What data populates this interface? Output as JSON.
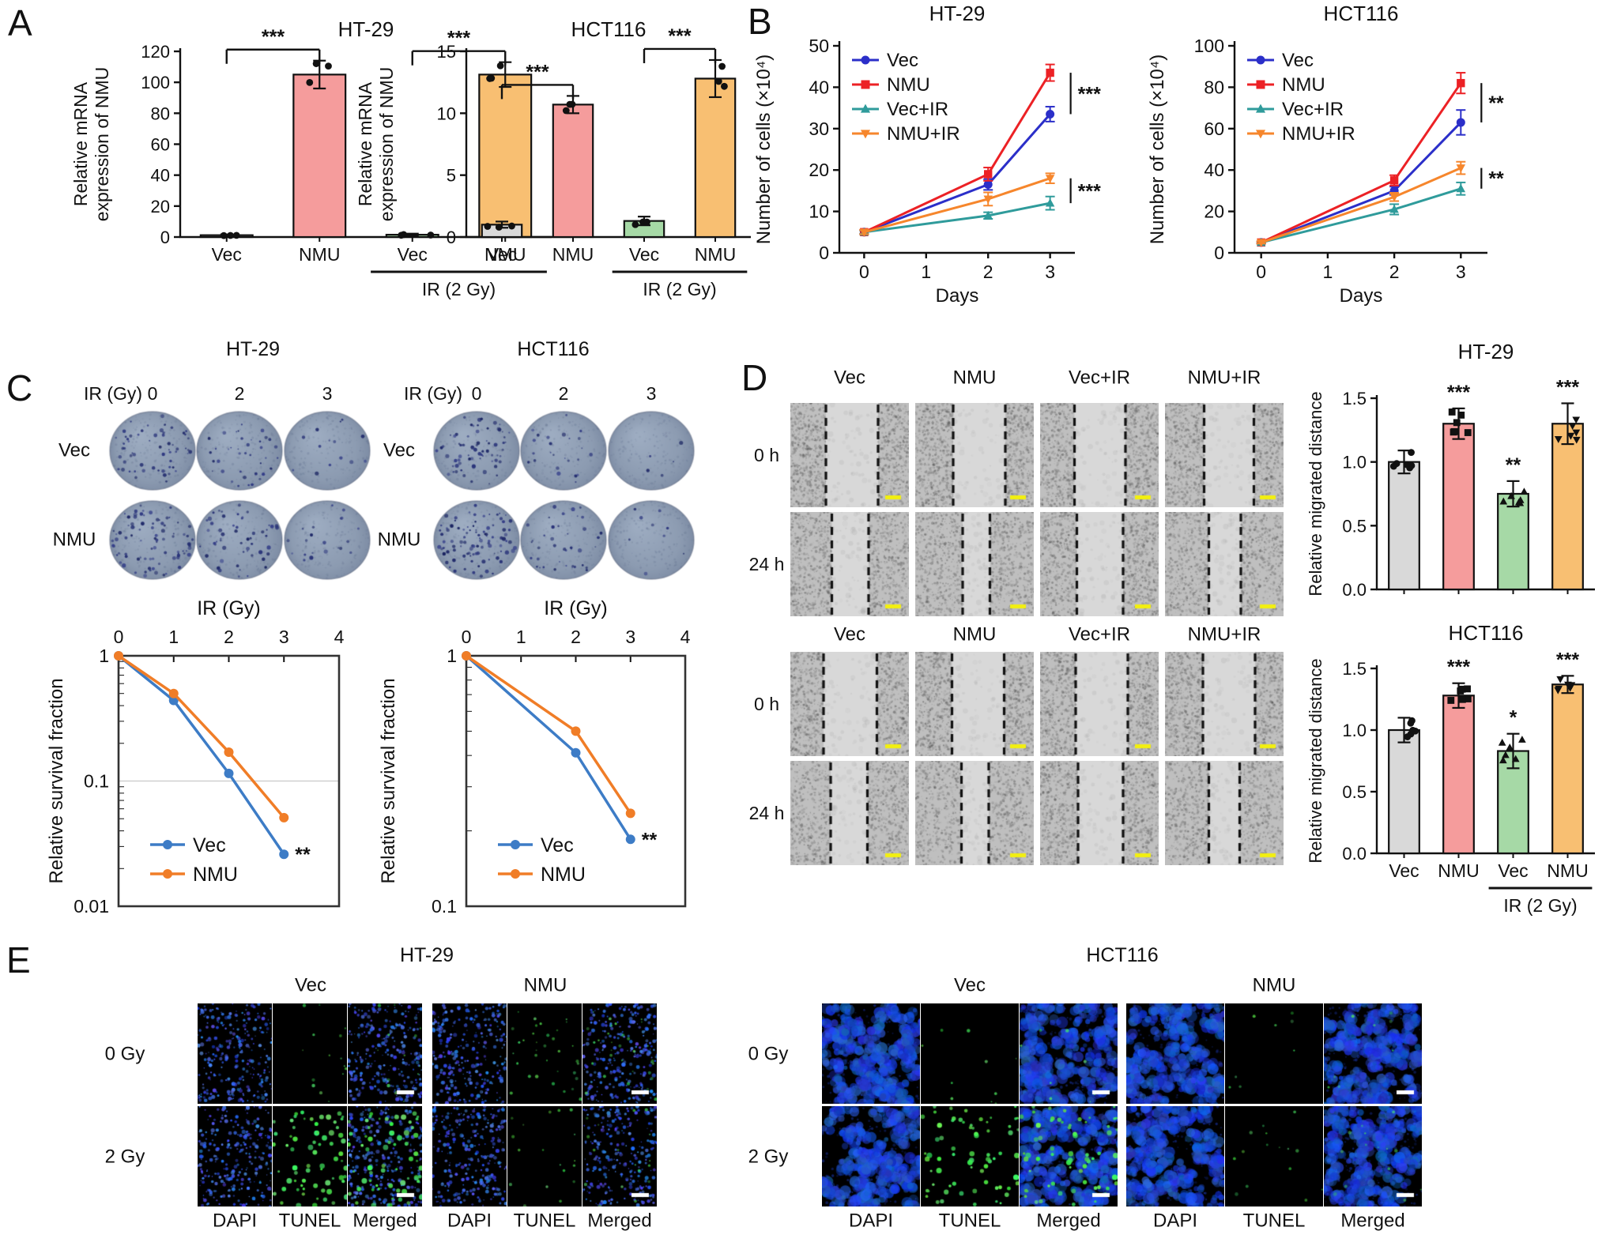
{
  "panel_labels": {
    "a": "A",
    "b": "B",
    "c": "C",
    "d": "D",
    "e": "E"
  },
  "colors": {
    "bar": {
      "gray": "#d9d9d9",
      "pink": "#f59c9c",
      "green": "#a6d9a6",
      "orange": "#f8bf72"
    },
    "vec_blue": "#2b2fc9",
    "nmu_red": "#ec2125",
    "vecir_teal": "#2f9b9b",
    "nmuir_orange": "#f6862c",
    "surv_blue": "#3d7cc6",
    "surv_orange": "#f07d27",
    "scalebar_yellow": "#f2ef10",
    "scalebar_white": "#ffffff",
    "dapi_blue": "#2440e0",
    "tunel_green": "#3cdc50"
  },
  "chart_data": [
    {
      "type": "bar",
      "title": "HT-29",
      "ylabel": "Relative mRNA|expression of NMU",
      "ylim": [
        0,
        120
      ],
      "yticks": [
        0,
        20,
        40,
        60,
        80,
        100,
        120
      ],
      "categories": [
        "Vec",
        "NMU",
        "Vec",
        "NMU"
      ],
      "values": [
        1.2,
        105,
        1.5,
        105
      ],
      "errors": [
        0.5,
        9,
        0.7,
        8
      ],
      "bar_colors": [
        "gray",
        "pink",
        "green",
        "orange"
      ],
      "points_per_bar": 3,
      "sig_brackets": [
        {
          "a": 0,
          "b": 1,
          "label": "***"
        },
        {
          "a": 2,
          "b": 3,
          "label": "***"
        }
      ],
      "group_label": "IR (2 Gy)",
      "group_span": [
        2,
        3
      ]
    },
    {
      "type": "bar",
      "title": "HCT116",
      "ylabel": "Relative mRNA|expression of NMU",
      "ylim": [
        0,
        15
      ],
      "yticks": [
        0,
        5,
        10,
        15
      ],
      "categories": [
        "Vec",
        "NMU",
        "Vec",
        "NMU"
      ],
      "values": [
        1.0,
        10.7,
        1.3,
        12.8
      ],
      "errors": [
        0.25,
        0.7,
        0.35,
        1.5
      ],
      "bar_colors": [
        "gray",
        "pink",
        "green",
        "orange"
      ],
      "points_per_bar": 3,
      "sig_brackets": [
        {
          "a": 0,
          "b": 1,
          "label": "***"
        },
        {
          "a": 2,
          "b": 3,
          "label": "***"
        }
      ],
      "group_label": "IR (2 Gy)",
      "group_span": [
        2,
        3
      ]
    },
    {
      "type": "line",
      "title": "HT-29",
      "ylabel": "Number of cells (×10⁴)",
      "xlabel": "Days",
      "xticks": [
        0,
        1,
        2,
        3
      ],
      "ylim": [
        0,
        50
      ],
      "yticks": [
        0,
        10,
        20,
        30,
        40,
        50
      ],
      "x": [
        0,
        2,
        3
      ],
      "series": [
        {
          "name": "Vec",
          "color_key": "vec_blue",
          "marker": "circle",
          "y": [
            5,
            16.5,
            33.5
          ],
          "err": [
            0.5,
            1.3,
            1.8
          ]
        },
        {
          "name": "NMU",
          "color_key": "nmu_red",
          "marker": "square",
          "y": [
            5,
            19,
            43.5
          ],
          "err": [
            0.5,
            1.6,
            2.0
          ]
        },
        {
          "name": "Vec+IR",
          "color_key": "vecir_teal",
          "marker": "triangle",
          "y": [
            5,
            9,
            12
          ],
          "err": [
            0.4,
            0.8,
            1.6
          ]
        },
        {
          "name": "NMU+IR",
          "color_key": "nmuir_orange",
          "marker": "triangle_down",
          "y": [
            5,
            13,
            18
          ],
          "err": [
            0.5,
            1.6,
            1.2
          ]
        }
      ],
      "sig": [
        {
          "hi": "NMU",
          "lo": "Vec",
          "label": "***"
        },
        {
          "hi": "NMU+IR",
          "lo": "Vec+IR",
          "label": "***"
        }
      ]
    },
    {
      "type": "line",
      "title": "HCT116",
      "ylabel": "Number of cells (×10⁴)",
      "xlabel": "Days",
      "xticks": [
        0,
        1,
        2,
        3
      ],
      "ylim": [
        0,
        100
      ],
      "yticks": [
        0,
        20,
        40,
        60,
        80,
        100
      ],
      "x": [
        0,
        2,
        3
      ],
      "series": [
        {
          "name": "Vec",
          "color_key": "vec_blue",
          "marker": "circle",
          "y": [
            5,
            30,
            63
          ],
          "err": [
            0.5,
            2,
            6
          ]
        },
        {
          "name": "NMU",
          "color_key": "nmu_red",
          "marker": "square",
          "y": [
            5,
            35,
            82
          ],
          "err": [
            0.5,
            2.5,
            5
          ]
        },
        {
          "name": "Vec+IR",
          "color_key": "vecir_teal",
          "marker": "triangle",
          "y": [
            5,
            21,
            31
          ],
          "err": [
            0.5,
            2.5,
            3
          ]
        },
        {
          "name": "NMU+IR",
          "color_key": "nmuir_orange",
          "marker": "triangle_down",
          "y": [
            5,
            27,
            41
          ],
          "err": [
            0.5,
            2,
            3
          ]
        }
      ],
      "sig": [
        {
          "hi": "NMU",
          "lo": "Vec",
          "label": "**"
        },
        {
          "hi": "NMU+IR",
          "lo": "Vec+IR",
          "label": "**"
        }
      ]
    },
    {
      "type": "survival",
      "top_label": "IR (Gy)",
      "xticks": [
        0,
        1,
        2,
        3,
        4
      ],
      "ylabel": "Relative survival fraction",
      "ylim": [
        0.01,
        1
      ],
      "yticks": [
        "1",
        "0.1",
        "0.01"
      ],
      "grid_at": 0.1,
      "series": [
        {
          "name": "Vec",
          "color_key": "surv_blue",
          "x": [
            0,
            1,
            2,
            3
          ],
          "y": [
            1,
            0.44,
            0.115,
            0.026
          ]
        },
        {
          "name": "NMU",
          "color_key": "surv_orange",
          "x": [
            0,
            1,
            2,
            3
          ],
          "y": [
            1,
            0.5,
            0.17,
            0.051
          ]
        }
      ],
      "sig": "**"
    },
    {
      "type": "survival",
      "top_label": "IR (Gy)",
      "xticks": [
        0,
        1,
        2,
        3,
        4
      ],
      "ylabel": "Relative survival fraction",
      "ylim": [
        0.1,
        1
      ],
      "yticks": [
        "1",
        "0.1"
      ],
      "grid_at": null,
      "series": [
        {
          "name": "Vec",
          "color_key": "surv_blue",
          "x": [
            0,
            2,
            3
          ],
          "y": [
            1,
            0.41,
            0.185
          ]
        },
        {
          "name": "NMU",
          "color_key": "surv_orange",
          "x": [
            0,
            2,
            3
          ],
          "y": [
            1,
            0.5,
            0.235
          ]
        }
      ],
      "sig": "**"
    },
    {
      "type": "bar",
      "title": "HT-29",
      "ylabel": "Relative migrated distance",
      "ylim": [
        0,
        1.5
      ],
      "yticks": [
        0,
        0.5,
        1,
        1.5
      ],
      "decimals": 1,
      "categories": [
        "Vec",
        "NMU",
        "Vec",
        "NMU"
      ],
      "show_cats": false,
      "values": [
        1.0,
        1.3,
        0.75,
        1.3
      ],
      "errors": [
        0.09,
        0.12,
        0.1,
        0.16
      ],
      "bar_colors": [
        "gray",
        "pink",
        "green",
        "orange"
      ],
      "points_per_bar": 6,
      "point_markers": [
        "circle",
        "square",
        "triangle",
        "triangle_down"
      ],
      "sig_above": [
        "",
        "***",
        "**",
        "***"
      ]
    },
    {
      "type": "bar",
      "title": "HCT116",
      "ylabel": "Relative migrated distance",
      "ylim": [
        0,
        1.5
      ],
      "yticks": [
        0,
        0.5,
        1,
        1.5
      ],
      "decimals": 1,
      "categories": [
        "Vec",
        "NMU",
        "Vec",
        "NMU"
      ],
      "show_cats": true,
      "values": [
        1.0,
        1.28,
        0.83,
        1.37
      ],
      "errors": [
        0.1,
        0.1,
        0.14,
        0.07
      ],
      "bar_colors": [
        "gray",
        "pink",
        "green",
        "orange"
      ],
      "points_per_bar": 6,
      "point_markers": [
        "circle",
        "square",
        "triangle",
        "triangle_down"
      ],
      "sig_above": [
        "",
        "***",
        "*",
        "***"
      ],
      "group_label": "IR (2 Gy)",
      "group_span": [
        2,
        3
      ]
    }
  ],
  "panel_c": {
    "groups": [
      {
        "title": "HT-29",
        "header": "IR (Gy)",
        "doses": [
          "0",
          "2",
          "3"
        ],
        "rows": [
          {
            "label": "Vec",
            "dots": [
              60,
              40,
              14
            ]
          },
          {
            "label": "NMU",
            "dots": [
              85,
              55,
              22
            ]
          }
        ]
      },
      {
        "title": "HCT116",
        "header": "IR (Gy)",
        "doses": [
          "0",
          "2",
          "3"
        ],
        "rows": [
          {
            "label": "Vec",
            "dots": [
              70,
              26,
              5
            ]
          },
          {
            "label": "NMU",
            "dots": [
              95,
              40,
              9
            ]
          }
        ]
      }
    ]
  },
  "panel_d": {
    "blocks": [
      {
        "cols": [
          "Vec",
          "NMU",
          "Vec+IR",
          "NMU+IR"
        ],
        "rows": [
          {
            "label": "0 h",
            "gaps": [
              [
                0.3,
                0.74
              ],
              [
                0.32,
                0.76
              ],
              [
                0.29,
                0.72
              ],
              [
                0.33,
                0.75
              ]
            ]
          },
          {
            "label": "24 h",
            "gaps": [
              [
                0.35,
                0.66
              ],
              [
                0.4,
                0.63
              ],
              [
                0.31,
                0.7
              ],
              [
                0.37,
                0.64
              ]
            ]
          }
        ]
      },
      {
        "cols": [
          "Vec",
          "NMU",
          "Vec+IR",
          "NMU+IR"
        ],
        "rows": [
          {
            "label": "0 h",
            "gaps": [
              [
                0.28,
                0.73
              ],
              [
                0.31,
                0.75
              ],
              [
                0.3,
                0.74
              ],
              [
                0.32,
                0.76
              ]
            ]
          },
          {
            "label": "24 h",
            "gaps": [
              [
                0.34,
                0.65
              ],
              [
                0.39,
                0.62
              ],
              [
                0.32,
                0.7
              ],
              [
                0.37,
                0.63
              ]
            ]
          }
        ]
      }
    ]
  },
  "panel_e": {
    "blocks": [
      {
        "title": "HT-29",
        "groups": [
          "Vec",
          "NMU"
        ],
        "rows": [
          "0 Gy",
          "2 Gy"
        ],
        "col_labels": [
          "DAPI",
          "TUNEL",
          "Merged",
          "DAPI",
          "TUNEL",
          "Merged"
        ],
        "dapi_style": "specks",
        "green_levels": [
          [
            0.15,
            0.45
          ],
          [
            1.0,
            0.2
          ]
        ]
      },
      {
        "title": "HCT116",
        "groups": [
          "Vec",
          "NMU"
        ],
        "rows": [
          "0 Gy",
          "2 Gy"
        ],
        "col_labels": [
          "DAPI",
          "TUNEL",
          "Merged",
          "DAPI",
          "TUNEL",
          "Merged"
        ],
        "dapi_style": "blobs",
        "green_levels": [
          [
            0.06,
            0.03
          ],
          [
            1.0,
            0.15
          ]
        ]
      }
    ]
  }
}
